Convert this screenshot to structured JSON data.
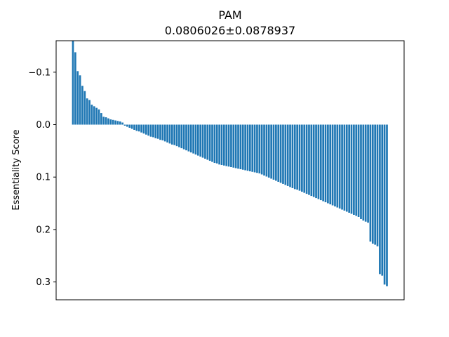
{
  "chart_data": {
    "type": "bar",
    "title": "PAM",
    "subtitle": "0.0806026±0.0878937",
    "xlabel": "",
    "ylabel": "Essentiality Score",
    "y_inverted": true,
    "ylim": [
      -0.16,
      0.334
    ],
    "yticks": [
      -0.1,
      0.0,
      0.1,
      0.2,
      0.3
    ],
    "ytick_labels": [
      "−0.1",
      "0.0",
      "0.1",
      "0.2",
      "0.3"
    ],
    "xticks_visible": false,
    "grid": false,
    "bar_color": "#1f77b4",
    "values": [
      -0.16,
      -0.138,
      -0.102,
      -0.094,
      -0.074,
      -0.064,
      -0.05,
      -0.047,
      -0.038,
      -0.035,
      -0.032,
      -0.029,
      -0.022,
      -0.015,
      -0.014,
      -0.012,
      -0.01,
      -0.009,
      -0.008,
      -0.007,
      -0.006,
      -0.004,
      0.002,
      0.004,
      0.006,
      0.008,
      0.01,
      0.012,
      0.013,
      0.015,
      0.017,
      0.019,
      0.021,
      0.023,
      0.024,
      0.026,
      0.027,
      0.029,
      0.03,
      0.032,
      0.034,
      0.036,
      0.038,
      0.039,
      0.041,
      0.043,
      0.045,
      0.047,
      0.049,
      0.051,
      0.053,
      0.055,
      0.057,
      0.059,
      0.061,
      0.063,
      0.065,
      0.067,
      0.069,
      0.071,
      0.073,
      0.074,
      0.076,
      0.077,
      0.078,
      0.079,
      0.08,
      0.081,
      0.082,
      0.083,
      0.084,
      0.085,
      0.086,
      0.087,
      0.088,
      0.089,
      0.09,
      0.091,
      0.092,
      0.093,
      0.095,
      0.097,
      0.099,
      0.101,
      0.103,
      0.105,
      0.107,
      0.109,
      0.111,
      0.113,
      0.115,
      0.117,
      0.119,
      0.121,
      0.123,
      0.124,
      0.126,
      0.128,
      0.13,
      0.132,
      0.134,
      0.136,
      0.138,
      0.14,
      0.142,
      0.144,
      0.146,
      0.148,
      0.15,
      0.152,
      0.154,
      0.156,
      0.158,
      0.16,
      0.162,
      0.164,
      0.166,
      0.168,
      0.17,
      0.172,
      0.174,
      0.176,
      0.18,
      0.183,
      0.185,
      0.187,
      0.223,
      0.227,
      0.229,
      0.232,
      0.285,
      0.288,
      0.305,
      0.308
    ]
  }
}
